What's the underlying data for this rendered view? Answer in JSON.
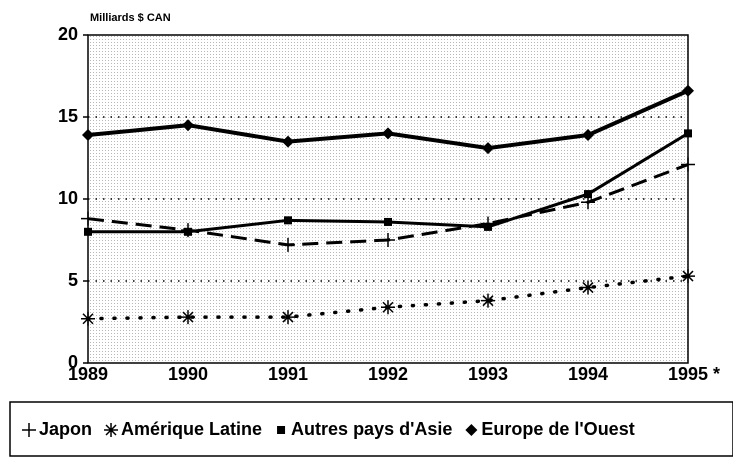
{
  "chart_data": {
    "type": "line",
    "y_axis_label": "Milliards $ CAN",
    "categories": [
      "1989",
      "1990",
      "1991",
      "1992",
      "1993",
      "1994",
      "1995 *"
    ],
    "ylim": [
      0,
      20
    ],
    "yticks": [
      0,
      5,
      10,
      15,
      20
    ],
    "grid": true,
    "series": [
      {
        "name": "Japon",
        "color": "#000000",
        "style": "dashed",
        "marker": "plus",
        "values": [
          8.8,
          8.1,
          7.2,
          7.5,
          8.5,
          9.8,
          12.1
        ]
      },
      {
        "name": "Amérique Latine",
        "color": "#000000",
        "style": "dotted",
        "marker": "star",
        "values": [
          2.7,
          2.8,
          2.8,
          3.4,
          3.8,
          4.6,
          5.3
        ]
      },
      {
        "name": "Autres pays d'Asie",
        "color": "#000000",
        "style": "solid",
        "marker": "square",
        "values": [
          8.0,
          8.0,
          8.7,
          8.6,
          8.3,
          10.3,
          14.0
        ]
      },
      {
        "name": "Europe de l'Ouest",
        "color": "#000000",
        "style": "thick",
        "marker": "diamond",
        "values": [
          13.9,
          14.5,
          13.5,
          14.0,
          13.1,
          13.9,
          16.6
        ]
      }
    ],
    "legend": "bottom"
  }
}
